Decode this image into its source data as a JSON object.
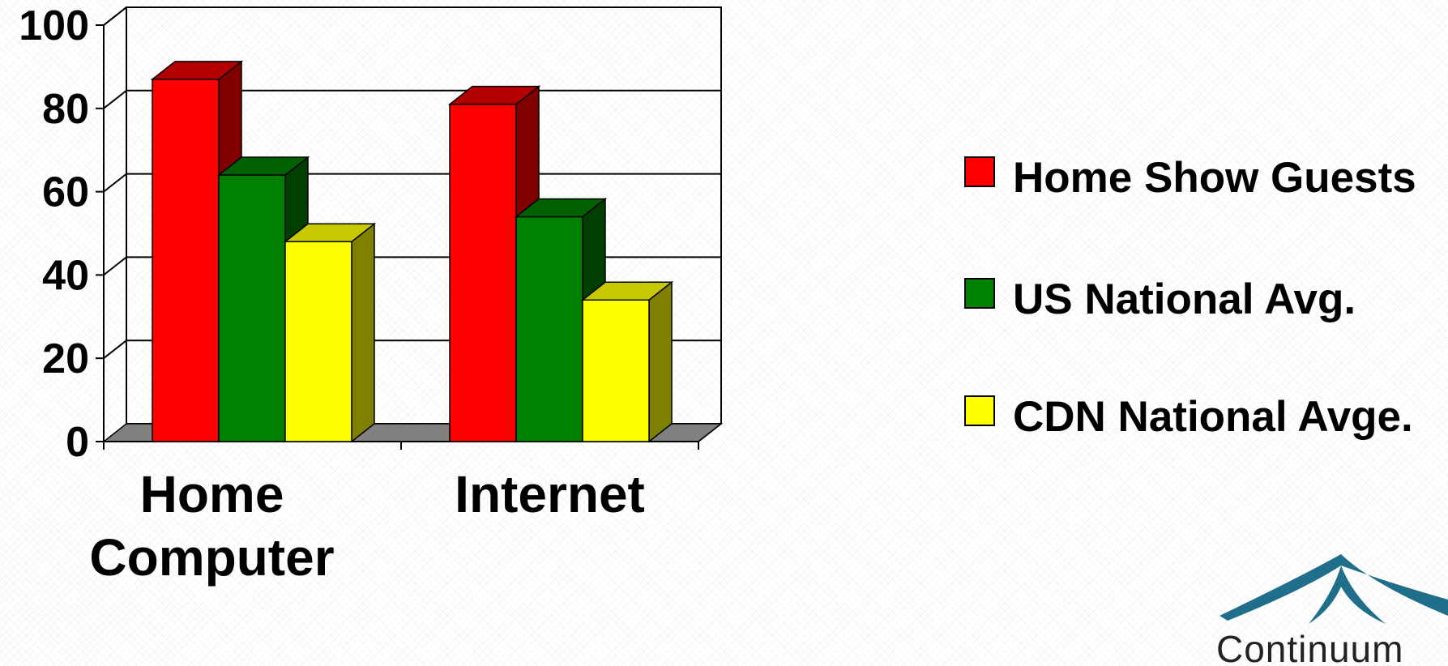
{
  "chart_data": {
    "type": "bar",
    "categories": [
      "Home\nComputer",
      "Internet"
    ],
    "series": [
      {
        "name": "Home Show Guests",
        "values": [
          87,
          81
        ],
        "color": "#ff0000",
        "side_color": "#800000",
        "top_color": "#b30000"
      },
      {
        "name": "US National Avg.",
        "values": [
          64,
          54
        ],
        "color": "#008000",
        "side_color": "#003f00",
        "top_color": "#006100"
      },
      {
        "name": "CDN National Avge.",
        "values": [
          48,
          34
        ],
        "color": "#ffff00",
        "side_color": "#808000",
        "top_color": "#c8c800"
      }
    ],
    "yticks": [
      "0",
      "20",
      "40",
      "60",
      "80",
      "100"
    ],
    "ylim": [
      0,
      100
    ],
    "grid": true,
    "legend_position": "right",
    "three_d": true
  },
  "legend": [
    {
      "label": "Home Show Guests",
      "color": "#ff0000"
    },
    {
      "label": "US National Avg.",
      "color": "#008000"
    },
    {
      "label": "CDN National Avge.",
      "color": "#ffff00"
    }
  ],
  "logo": {
    "text": "Continuum",
    "color": "#1f6f8b"
  }
}
